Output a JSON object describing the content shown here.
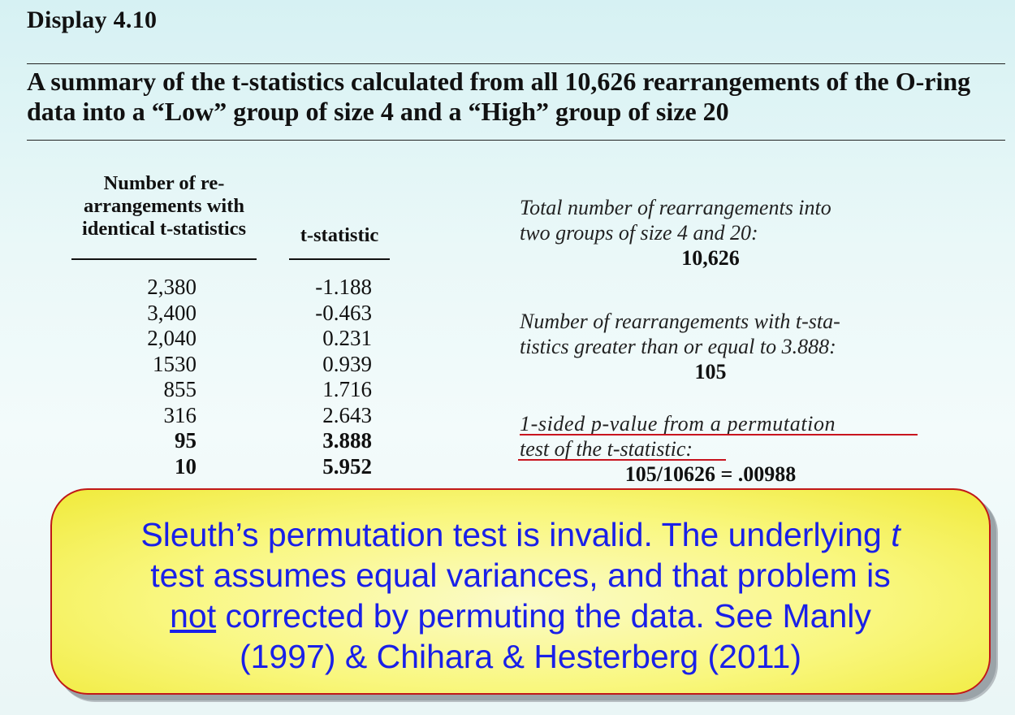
{
  "display_label": "Display 4.10",
  "summary": "A summary of the t-statistics calculated from all 10,626 rearrangements of the O-ring data into a “Low” group of size 4 and a “High” group of size 20",
  "table": {
    "col1_header_lines": [
      "Number of re-",
      "arrangements with",
      "identical t-statistics"
    ],
    "col2_header": "t-statistic",
    "rows": [
      {
        "count": "2,380",
        "t": "-1.188",
        "bold": false
      },
      {
        "count": "3,400",
        "t": "-0.463",
        "bold": false
      },
      {
        "count": "2,040",
        "t": "0.231",
        "bold": false
      },
      {
        "count": "1530",
        "t": "0.939",
        "bold": false
      },
      {
        "count": "855",
        "t": "1.716",
        "bold": false
      },
      {
        "count": "316",
        "t": "2.643",
        "bold": false
      },
      {
        "count": "95",
        "t": "3.888",
        "bold": true
      },
      {
        "count": "10",
        "t": "5.952",
        "bold": true
      }
    ]
  },
  "side_notes": {
    "total_lines": [
      "Total number of rearrangements into",
      "two groups of size 4 and 20:"
    ],
    "total_value": "10,626",
    "greater_lines": [
      "Number of rearrangements with t-sta-",
      "tistics greater than or equal to 3.888:"
    ],
    "greater_value": "105",
    "pvalue_lines": [
      "1-sided p-value from a permutation",
      "test of the t-statistic:"
    ],
    "pvalue_value": "105/10626 = .00988"
  },
  "callout": {
    "part1": "Sleuth’s permutation test is invalid. The underlying ",
    "italic_t": "t",
    "part2": " test assumes equal variances, and that problem is ",
    "underlined": "not",
    "part3": " corrected by permuting the data. See Manly (1997) & Chihara & Hesterberg (2011)",
    "accent_color": "#1a20e8",
    "fill_color": "#f9f77e"
  }
}
